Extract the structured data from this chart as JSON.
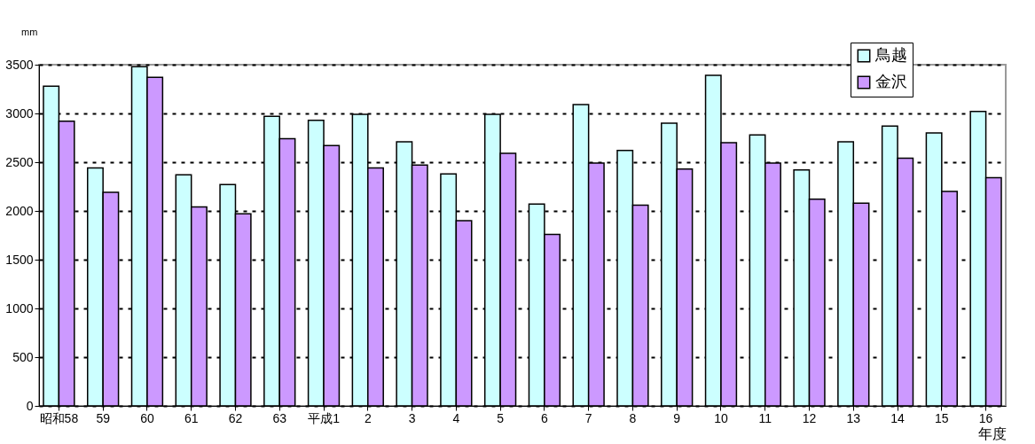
{
  "chart_data": {
    "type": "bar",
    "ylabel": "mm",
    "xlabel": "年度",
    "categories": [
      "昭和58",
      "59",
      "60",
      "61",
      "62",
      "63",
      "平成1",
      "2",
      "3",
      "4",
      "5",
      "6",
      "7",
      "8",
      "9",
      "10",
      "11",
      "12",
      "13",
      "14",
      "15",
      "16"
    ],
    "series": [
      {
        "name": "鳥越",
        "color": "#ccffff",
        "values": [
          3280,
          2440,
          3480,
          2370,
          2270,
          2970,
          2930,
          2990,
          2710,
          2380,
          2990,
          2070,
          3090,
          2620,
          2900,
          3390,
          2780,
          2420,
          2710,
          2870,
          2800,
          3020
        ]
      },
      {
        "name": "金沢",
        "color": "#cc99ff",
        "values": [
          2920,
          2190,
          3370,
          2040,
          1970,
          2740,
          2670,
          2440,
          2470,
          1900,
          2590,
          1760,
          2490,
          2060,
          2430,
          2700,
          2490,
          2120,
          2080,
          2540,
          2200,
          2340
        ]
      }
    ],
    "ylim": [
      0,
      3500
    ],
    "yticks": [
      0,
      500,
      1000,
      1500,
      2000,
      2500,
      3000,
      3500
    ],
    "grid": "y",
    "legend": "top right"
  }
}
